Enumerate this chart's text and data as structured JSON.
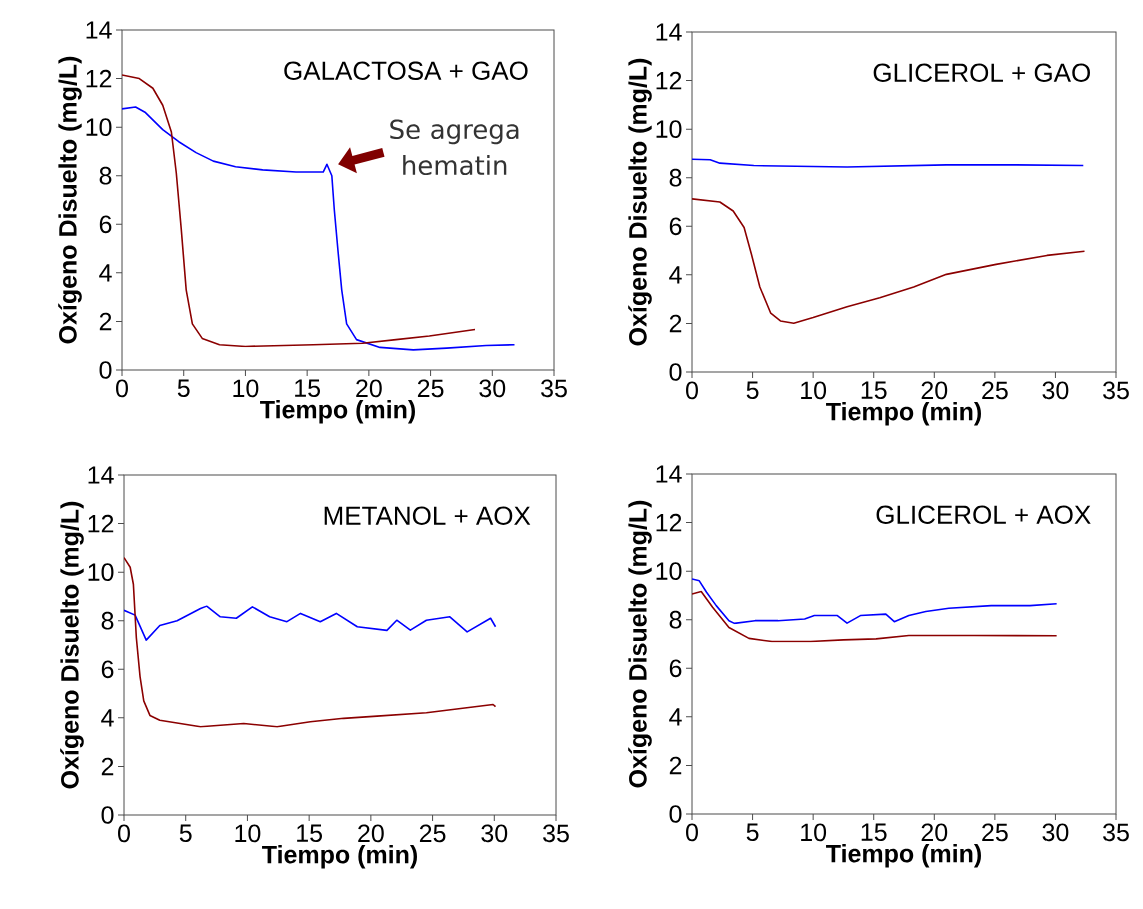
{
  "chart_data": [
    {
      "type": "line",
      "title": "GALACTOSA + GAO",
      "xlabel": "Tiempo (min)",
      "ylabel": "Oxígeno Disuelto (mg/L)",
      "xlim": [
        0,
        35
      ],
      "xticks": [
        0,
        5,
        10,
        15,
        20,
        25,
        30,
        35
      ],
      "ylim": [
        0,
        14
      ],
      "yticks": [
        0,
        2,
        4,
        6,
        8,
        10,
        12,
        14
      ],
      "annotations": [
        "Se agrega hematin"
      ],
      "series": [
        {
          "color": "#0000ff",
          "x": [
            0,
            1.1,
            1.9,
            3.3,
            4.6,
            6.0,
            7.4,
            9.2,
            11.4,
            14.1,
            16.3,
            16.6,
            17.0,
            17.2,
            17.5,
            17.8,
            18.2,
            19.0,
            20.9,
            23.6,
            26.3,
            29.5,
            31.8
          ],
          "values": [
            10.75,
            10.83,
            10.6,
            9.9,
            9.4,
            8.95,
            8.6,
            8.37,
            8.24,
            8.15,
            8.15,
            8.47,
            8.0,
            6.6,
            4.9,
            3.3,
            1.9,
            1.25,
            0.93,
            0.83,
            0.9,
            1.01,
            1.04
          ]
        },
        {
          "color": "#8b0000",
          "x": [
            0,
            1.4,
            2.5,
            3.3,
            4.0,
            4.4,
            4.8,
            5.2,
            5.7,
            6.5,
            7.9,
            10,
            15.5,
            19.5,
            22.2,
            24.9,
            28.6
          ],
          "values": [
            12.15,
            12.0,
            11.6,
            10.9,
            9.8,
            8.1,
            5.8,
            3.3,
            1.9,
            1.3,
            1.04,
            0.97,
            1.04,
            1.1,
            1.25,
            1.4,
            1.67
          ]
        }
      ]
    },
    {
      "type": "line",
      "title": "GLICEROL + GAO",
      "xlabel": "Tiempo (min)",
      "ylabel": "Oxígeno Disuelto (mg/L)",
      "xlim": [
        0,
        35
      ],
      "xticks": [
        0,
        5,
        10,
        15,
        20,
        25,
        30,
        35
      ],
      "ylim": [
        0,
        14
      ],
      "yticks": [
        0,
        2,
        4,
        6,
        8,
        10,
        12,
        14
      ],
      "series": [
        {
          "color": "#0000ff",
          "x": [
            0,
            1.5,
            2.3,
            5.1,
            12.8,
            21,
            26.5,
            32.3
          ],
          "values": [
            8.76,
            8.74,
            8.6,
            8.5,
            8.44,
            8.53,
            8.53,
            8.5
          ]
        },
        {
          "color": "#8b0000",
          "x": [
            0,
            2.3,
            3.4,
            4.3,
            4.9,
            5.6,
            6.5,
            7.3,
            8.4,
            10,
            12.8,
            15.5,
            18.3,
            21,
            25.1,
            29.3,
            32.4
          ],
          "values": [
            7.13,
            7.0,
            6.63,
            5.95,
            4.86,
            3.5,
            2.42,
            2.1,
            2.01,
            2.24,
            2.69,
            3.06,
            3.5,
            4.02,
            4.43,
            4.8,
            4.97
          ]
        }
      ]
    },
    {
      "type": "line",
      "title": "METANOL + AOX",
      "xlabel": "Tiempo (min)",
      "ylabel": "Oxígeno Disuelto (mg/L)",
      "xlim": [
        0,
        35
      ],
      "xticks": [
        0,
        5,
        10,
        15,
        20,
        25,
        30,
        35
      ],
      "ylim": [
        0,
        14
      ],
      "yticks": [
        0,
        2,
        4,
        6,
        8,
        10,
        12,
        14
      ],
      "series": [
        {
          "color": "#0000ff",
          "x": [
            0,
            0.9,
            1.8,
            2.9,
            4.3,
            6.2,
            6.7,
            7.8,
            9.1,
            10.4,
            11.8,
            13.2,
            14.3,
            15.9,
            17.2,
            18.9,
            21.3,
            22.1,
            23.2,
            24.5,
            26.4,
            27.8,
            29.7,
            30.1
          ],
          "values": [
            8.43,
            8.23,
            7.2,
            7.8,
            8.0,
            8.5,
            8.6,
            8.16,
            8.1,
            8.57,
            8.16,
            7.96,
            8.3,
            7.96,
            8.3,
            7.75,
            7.6,
            8.02,
            7.61,
            8.02,
            8.16,
            7.54,
            8.1,
            7.75
          ]
        },
        {
          "color": "#8b0000",
          "x": [
            0,
            0.5,
            0.76,
            1.0,
            1.3,
            1.6,
            2.1,
            2.9,
            6.2,
            9.7,
            12.4,
            15.1,
            17.8,
            20.5,
            24.5,
            29.9,
            30.1
          ],
          "values": [
            10.6,
            10.2,
            9.5,
            7.3,
            5.7,
            4.7,
            4.1,
            3.9,
            3.63,
            3.77,
            3.63,
            3.84,
            3.98,
            4.07,
            4.21,
            4.55,
            4.46
          ]
        }
      ]
    },
    {
      "type": "line",
      "title": "GLICEROL + AOX",
      "xlabel": "Tiempo (min)",
      "ylabel": "Oxígeno Disuelto (mg/L)",
      "xlim": [
        0,
        35
      ],
      "xticks": [
        0,
        5,
        10,
        15,
        20,
        25,
        30,
        35
      ],
      "ylim": [
        0,
        14
      ],
      "yticks": [
        0,
        2,
        4,
        6,
        8,
        10,
        12,
        14
      ],
      "series": [
        {
          "color": "#0000ff",
          "x": [
            0,
            0.6,
            1.2,
            2.0,
            3.05,
            3.5,
            5.2,
            7.1,
            9.3,
            10.1,
            12,
            12.8,
            13.9,
            16.0,
            16.7,
            17.9,
            19.3,
            21.2,
            24.7,
            27.9,
            30.1
          ],
          "values": [
            9.68,
            9.6,
            9.13,
            8.58,
            7.96,
            7.85,
            7.96,
            7.96,
            8.03,
            8.17,
            8.17,
            7.86,
            8.17,
            8.23,
            7.92,
            8.17,
            8.34,
            8.47,
            8.58,
            8.58,
            8.66
          ]
        },
        {
          "color": "#8b0000",
          "x": [
            0,
            0.76,
            1.7,
            3.05,
            4.7,
            6.6,
            9.8,
            12.5,
            15.2,
            17.9,
            23.3,
            30.1
          ],
          "values": [
            9.06,
            9.16,
            8.51,
            7.68,
            7.23,
            7.1,
            7.1,
            7.17,
            7.21,
            7.35,
            7.35,
            7.34
          ]
        }
      ]
    }
  ]
}
